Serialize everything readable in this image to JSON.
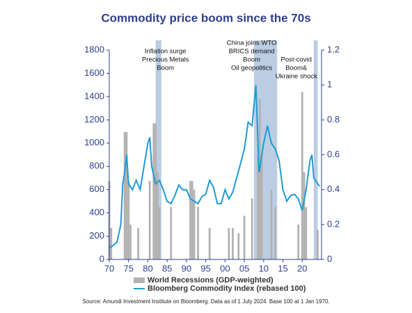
{
  "chart_data": {
    "type": "bar+line",
    "title": "Commodity price boom since the 70s",
    "source": "Source: Amundi Investment Institute on Bloomberg. Data as of 1 July 2024. Base 100 at 1 Jan 1970.",
    "xlim": [
      1970,
      2025
    ],
    "xticks": [
      {
        "value": 1970,
        "label": "70"
      },
      {
        "value": 1975,
        "label": "75"
      },
      {
        "value": 1980,
        "label": "80"
      },
      {
        "value": 1985,
        "label": "85"
      },
      {
        "value": 1990,
        "label": "90"
      },
      {
        "value": 1995,
        "label": "95"
      },
      {
        "value": 2000,
        "label": "00"
      },
      {
        "value": 2005,
        "label": "05"
      },
      {
        "value": 2010,
        "label": "10"
      },
      {
        "value": 2015,
        "label": "15"
      },
      {
        "value": 2020,
        "label": "20"
      }
    ],
    "ylim": [
      0,
      1800
    ],
    "yticks": [
      0,
      200,
      400,
      600,
      800,
      1000,
      1200,
      1400,
      1600,
      1800
    ],
    "y2lim": [
      0,
      1.2
    ],
    "y2ticks": [
      0,
      0.2,
      0.4,
      0.6,
      0.8,
      1,
      1.2
    ],
    "highlights": [
      {
        "start": 1982,
        "end": 1983.5,
        "label": [
          "Inflation surge",
          "Precious Metals",
          "Boom"
        ]
      },
      {
        "start": 2007.5,
        "end": 2013.5,
        "label": [
          "China joins WTO",
          "BRICS demand",
          "Boom",
          "Oil geopolitics"
        ]
      },
      {
        "start": 2023,
        "end": 2024,
        "label": [
          "Post-covid",
          "Boom&",
          "Ukraine shock"
        ]
      }
    ],
    "series": [
      {
        "name": "World Recessions (GDP-weighted)",
        "type": "bar",
        "axis": "y2",
        "color": "#b3b1b1",
        "x": [
          1970,
          1970.5,
          1974,
          1974.5,
          1975,
          1975.5,
          1977.5,
          1980.5,
          1981.5,
          1982,
          1982.5,
          1983,
          1986,
          1991,
          1991.5,
          1992,
          1993,
          1996,
          2001,
          2002,
          2003.5,
          2005,
          2007,
          2008.5,
          2009,
          2009.5,
          2012,
          2013,
          2019,
          2020,
          2020.5,
          2021,
          2024
        ],
        "values": [
          0.45,
          0.18,
          0.73,
          0.73,
          0.45,
          0.2,
          0.18,
          0.45,
          0.78,
          0.78,
          0.5,
          0.3,
          0.3,
          0.45,
          0.45,
          0.4,
          0.3,
          0.18,
          0.18,
          0.18,
          0.15,
          0.25,
          0.35,
          0.6,
          0.92,
          0.6,
          0.4,
          0.3,
          0.2,
          0.96,
          0.5,
          0.3,
          0.17
        ]
      },
      {
        "name": "Bloomberg Commodity Index (rebased 100)",
        "type": "line",
        "color": "#1e9ad6",
        "x": [
          1970,
          1971,
          1972,
          1973,
          1973.5,
          1974,
          1974.5,
          1975,
          1976,
          1977,
          1978,
          1979,
          1980,
          1980.5,
          1981,
          1982,
          1983,
          1984,
          1985,
          1986,
          1987,
          1988,
          1989,
          1990,
          1991,
          1992,
          1993,
          1994,
          1995,
          1996,
          1997,
          1998,
          1999,
          2000,
          2001,
          2002,
          2003,
          2004,
          2005,
          2006,
          2007,
          2008,
          2008.8,
          2009,
          2010,
          2011,
          2012,
          2013,
          2014,
          2015,
          2016,
          2017,
          2018,
          2019,
          2020,
          2021,
          2022,
          2022.5,
          2023,
          2024,
          2024.5
        ],
        "values": [
          100,
          120,
          150,
          300,
          650,
          750,
          900,
          650,
          600,
          680,
          600,
          800,
          1000,
          1050,
          800,
          650,
          680,
          600,
          500,
          480,
          550,
          640,
          600,
          600,
          520,
          500,
          480,
          540,
          560,
          680,
          620,
          480,
          480,
          600,
          520,
          580,
          700,
          820,
          950,
          1180,
          1150,
          1500,
          750,
          780,
          1000,
          1150,
          1000,
          950,
          850,
          600,
          500,
          550,
          560,
          520,
          420,
          600,
          850,
          900,
          700,
          650,
          630
        ]
      }
    ]
  }
}
